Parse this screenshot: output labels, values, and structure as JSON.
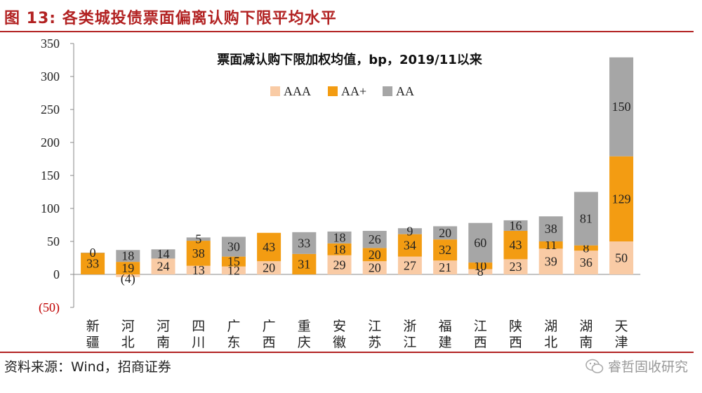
{
  "figure_title": "图  13:  各类城投债票面偏离认购下限平均水平",
  "source": "资料来源：Wind，招商证券",
  "brand": "睿哲固收研究",
  "chart_data": {
    "type": "bar",
    "stacked": true,
    "title": "票面减认购下限加权均值，bp，2019/11以来",
    "categories": [
      "新\n疆",
      "河\n北",
      "河\n南",
      "四\n川",
      "广\n东",
      "广\n西",
      "重\n庆",
      "安\n徽",
      "江\n苏",
      "浙\n江",
      "福\n建",
      "江\n西",
      "陕\n西",
      "湖\n北",
      "湖\n南",
      "天\n津"
    ],
    "series": [
      {
        "name": "AAA",
        "color": "#f9cba5",
        "values": [
          null,
          -4,
          24,
          13,
          12,
          20,
          null,
          29,
          20,
          27,
          21,
          8,
          23,
          39,
          36,
          50
        ],
        "labels": [
          "",
          "(4)",
          "24",
          "13",
          "12",
          "20",
          "",
          "29",
          "20",
          "27",
          "21",
          "8",
          "23",
          "39",
          "36",
          "50"
        ]
      },
      {
        "name": "AA+",
        "color": "#f39c12",
        "values": [
          33,
          19,
          null,
          38,
          15,
          43,
          31,
          18,
          20,
          34,
          32,
          10,
          43,
          11,
          8,
          129
        ],
        "labels": [
          "33",
          "19",
          "",
          "38",
          "15",
          "43",
          "31",
          "18",
          "20",
          "34",
          "32",
          "10",
          "43",
          "11",
          "8",
          "129"
        ]
      },
      {
        "name": "AA",
        "color": "#a6a6a6",
        "values": [
          0,
          18,
          14,
          5,
          30,
          null,
          33,
          18,
          26,
          9,
          20,
          60,
          16,
          38,
          81,
          150
        ],
        "labels": [
          "0",
          "18",
          "14",
          "5",
          "30",
          "",
          "33",
          "18",
          "26",
          "9",
          "20",
          "60",
          "16",
          "38",
          "81",
          "150"
        ]
      }
    ],
    "y_ticks": [
      "350",
      "300",
      "250",
      "200",
      "150",
      "100",
      "50",
      "0",
      "(50)"
    ],
    "ylim": [
      -50,
      350
    ],
    "legend_position": "top-center",
    "grid": false
  }
}
